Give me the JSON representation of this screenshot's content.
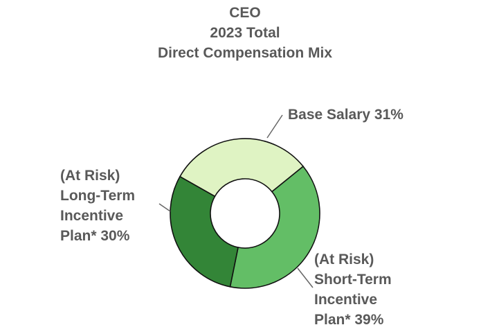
{
  "chart_data": {
    "type": "pie",
    "variant": "donut",
    "title_lines": [
      "CEO",
      "2023 Total",
      "Direct Compensation Mix"
    ],
    "slices": [
      {
        "label_lines": [
          "Base Salary 31%"
        ],
        "value": 31,
        "color": "#dff3c3"
      },
      {
        "label_lines": [
          "(At Risk)",
          "Short-Term",
          "Incentive",
          "Plan* 39%"
        ],
        "value": 39,
        "color": "#63be66"
      },
      {
        "label_lines": [
          "(At Risk)",
          "Long-Term",
          "Incentive",
          "Plan*  30%"
        ],
        "value": 30,
        "color": "#338537"
      }
    ],
    "legend": "none"
  }
}
